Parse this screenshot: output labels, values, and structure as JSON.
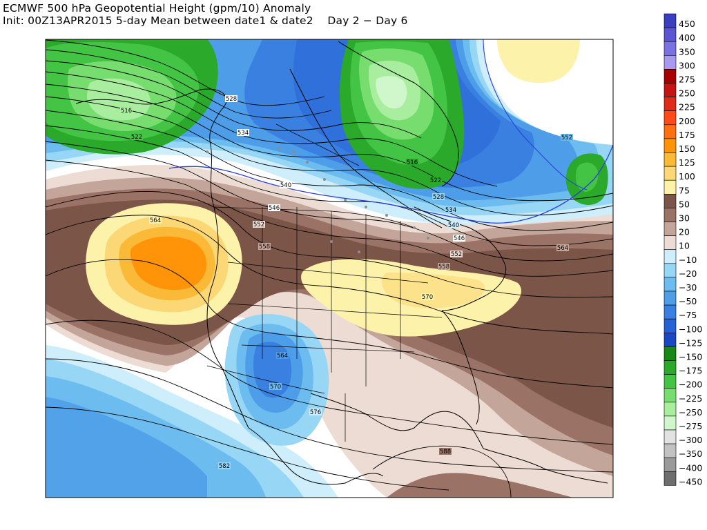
{
  "header": {
    "title_line1": "ECMWF 500 hPa Geopotential Height (gpm/10) Anomaly",
    "title_line2": "Init: 00Z13APR2015 5-day Mean between date1 & date2    Day 2 − Day 6"
  },
  "contour_labels": [
    "516",
    "522",
    "528",
    "534",
    "540",
    "546",
    "552",
    "558",
    "564",
    "570",
    "576",
    "582",
    "588"
  ],
  "colorbar": {
    "entries": [
      {
        "label": "450",
        "color": "#3a3ec0"
      },
      {
        "label": "400",
        "color": "#5a55d2"
      },
      {
        "label": "350",
        "color": "#7a72e2"
      },
      {
        "label": "300",
        "color": "#a79af0"
      },
      {
        "label": "275",
        "color": "#a80000"
      },
      {
        "label": "250",
        "color": "#c41414"
      },
      {
        "label": "225",
        "color": "#e02b1b"
      },
      {
        "label": "200",
        "color": "#ff4a1a"
      },
      {
        "label": "175",
        "color": "#ff6e10"
      },
      {
        "label": "150",
        "color": "#ff9408"
      },
      {
        "label": "125",
        "color": "#fbb938"
      },
      {
        "label": "100",
        "color": "#fbd775"
      },
      {
        "label": "75",
        "color": "#fdf2aa"
      },
      {
        "label": "50",
        "color": "#7a5548"
      },
      {
        "label": "30",
        "color": "#9a7266"
      },
      {
        "label": "20",
        "color": "#c4a59a"
      },
      {
        "label": "10",
        "color": "#eddcd4"
      },
      {
        "label": "−10",
        "color": "#cfeefb"
      },
      {
        "label": "−20",
        "color": "#98d6f6"
      },
      {
        "label": "−30",
        "color": "#6cbcf0"
      },
      {
        "label": "−50",
        "color": "#4d9de9"
      },
      {
        "label": "−75",
        "color": "#3a80e0"
      },
      {
        "label": "−100",
        "color": "#2662d6"
      },
      {
        "label": "−125",
        "color": "#1b46c4"
      },
      {
        "label": "−150",
        "color": "#168a14"
      },
      {
        "label": "−175",
        "color": "#2aa92a"
      },
      {
        "label": "−200",
        "color": "#44c444"
      },
      {
        "label": "−225",
        "color": "#76dd6e"
      },
      {
        "label": "−250",
        "color": "#a8ee9e"
      },
      {
        "label": "−275",
        "color": "#d0f6cc"
      },
      {
        "label": "−300",
        "color": "#e2e2e2"
      },
      {
        "label": "−350",
        "color": "#c2c2c2"
      },
      {
        "label": "−400",
        "color": "#9a9a9a"
      },
      {
        "label": "−450",
        "color": "#6e6e6e"
      }
    ]
  }
}
